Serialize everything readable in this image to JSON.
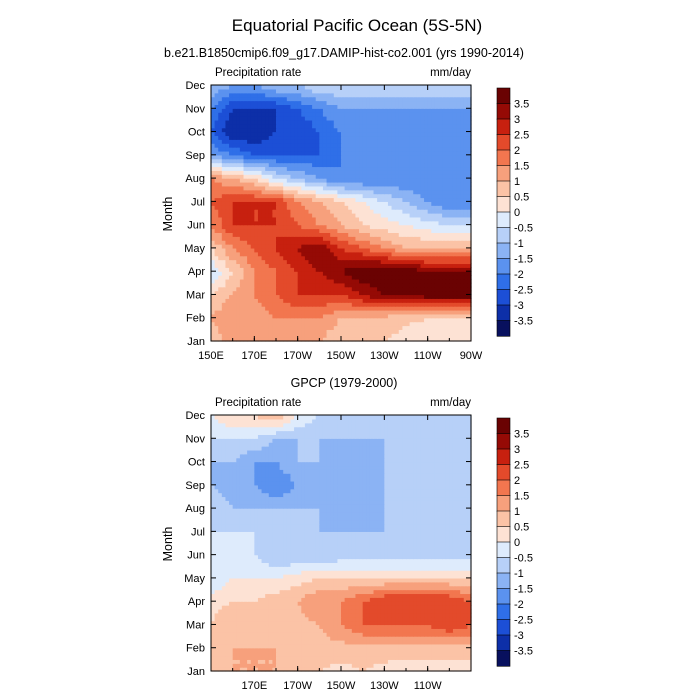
{
  "title": "Equatorial Pacific Ocean (5S-5N)",
  "colorbar_levels": [
    "3.5",
    "3",
    "2.5",
    "2",
    "1.5",
    "1",
    "0.5",
    "0",
    "-0.5",
    "-1",
    "-1.5",
    "-2",
    "-2.5",
    "-3",
    "-3.5"
  ],
  "colors": {
    "palette": [
      "#08105e",
      "#0d2fa8",
      "#1c4fd6",
      "#2f6fe8",
      "#5b92ef",
      "#8bb3f4",
      "#b7d0f8",
      "#deebfc",
      "#fde2d4",
      "#fbc3a6",
      "#f7a07c",
      "#f2764f",
      "#e34a2b",
      "#c7200f",
      "#950a05",
      "#6a0202"
    ]
  },
  "chart_data": [
    {
      "type": "heatmap",
      "subtitle": "b.e21.B1850cmip6.f09_g17.DAMIP-hist-co2.001 (yrs 1990-2014)",
      "left_label": "Precipitation rate",
      "right_label": "mm/day",
      "ylabel": "Month",
      "x_ticks": [
        "150E",
        "170E",
        "170W",
        "150W",
        "130W",
        "110W",
        "90W"
      ],
      "y_ticks": [
        "Jan",
        "Feb",
        "Mar",
        "Apr",
        "May",
        "Jun",
        "Jul",
        "Aug",
        "Sep",
        "Oct",
        "Nov",
        "Dec"
      ],
      "xlim": [
        150,
        270
      ],
      "levels": [
        -3.5,
        -3,
        -2.5,
        -2,
        -1.5,
        -1,
        -0.5,
        0,
        0.5,
        1,
        1.5,
        2,
        2.5,
        3,
        3.5
      ],
      "x": [
        150,
        160,
        170,
        180,
        190,
        200,
        210,
        220,
        230,
        240,
        250,
        260,
        270
      ],
      "z": [
        [
          0.5,
          1.5,
          1.0,
          1.0,
          1.5,
          1.0,
          0.5,
          0.5,
          0.5,
          0.3,
          0.2,
          0.2,
          0.0
        ],
        [
          1.0,
          1.5,
          1.0,
          1.5,
          1.5,
          1.5,
          1.0,
          1.0,
          0.8,
          0.6,
          0.5,
          0.5,
          0.3
        ],
        [
          0.5,
          1.0,
          1.5,
          2.0,
          2.5,
          2.5,
          2.5,
          3.0,
          3.5,
          3.5,
          3.8,
          3.8,
          3.8
        ],
        [
          -0.5,
          0.5,
          1.5,
          2.0,
          2.5,
          3.0,
          3.5,
          4.0,
          4.0,
          4.0,
          3.5,
          3.5,
          3.5
        ],
        [
          0.5,
          1.5,
          2.0,
          2.5,
          3.0,
          3.5,
          2.5,
          2.0,
          1.5,
          1.0,
          1.0,
          1.0,
          1.0
        ],
        [
          1.5,
          2.5,
          2.5,
          2.5,
          2.0,
          1.5,
          1.0,
          0.5,
          0.2,
          0.0,
          -0.3,
          -0.5,
          -0.5
        ],
        [
          2.0,
          2.5,
          2.5,
          2.5,
          1.5,
          1.0,
          0.5,
          0.0,
          -0.5,
          -1.0,
          -1.5,
          -2.0,
          -2.0
        ],
        [
          1.5,
          1.0,
          0.5,
          -0.5,
          -1.0,
          -1.5,
          -2.0,
          -2.0,
          -2.0,
          -2.0,
          -2.0,
          -2.0,
          -2.0
        ],
        [
          -1.5,
          -2.0,
          -2.5,
          -2.5,
          -2.5,
          -2.5,
          -2.0,
          -2.0,
          -2.0,
          -2.0,
          -2.0,
          -2.0,
          -2.0
        ],
        [
          -2.5,
          -3.5,
          -3.5,
          -3.0,
          -3.0,
          -2.5,
          -2.0,
          -2.0,
          -2.0,
          -2.0,
          -2.0,
          -2.0,
          -2.0
        ],
        [
          -2.0,
          -3.0,
          -3.0,
          -3.0,
          -2.5,
          -2.0,
          -1.5,
          -1.5,
          -1.5,
          -1.5,
          -1.5,
          -1.5,
          -1.5
        ],
        [
          -1.0,
          -1.5,
          -1.5,
          -1.0,
          -1.0,
          -0.5,
          -0.5,
          -0.5,
          -0.5,
          -0.5,
          -0.5,
          -0.5,
          -0.5
        ]
      ]
    },
    {
      "type": "heatmap",
      "subtitle": "GPCP (1979-2000)",
      "left_label": "Precipitation rate",
      "right_label": "mm/day",
      "ylabel": "Month",
      "x_ticks": [
        "170E",
        "170W",
        "150W",
        "130W",
        "110W"
      ],
      "y_ticks": [
        "Jan",
        "Feb",
        "Mar",
        "Apr",
        "May",
        "Jun",
        "Jul",
        "Aug",
        "Sep",
        "Oct",
        "Nov",
        "Dec"
      ],
      "xlim": [
        150,
        270
      ],
      "levels": [
        -3.5,
        -3,
        -2.5,
        -2,
        -1.5,
        -1,
        -0.5,
        0,
        0.5,
        1,
        1.5,
        2,
        2.5,
        3,
        3.5
      ],
      "x": [
        150,
        160,
        170,
        180,
        190,
        200,
        210,
        220,
        230,
        240,
        250,
        260,
        270
      ],
      "z": [
        [
          0.5,
          1.0,
          1.0,
          1.0,
          0.5,
          0.5,
          0.3,
          0.5,
          0.3,
          0.2,
          0.2,
          0.2,
          0.2
        ],
        [
          0.5,
          1.0,
          1.0,
          1.0,
          0.5,
          0.8,
          0.8,
          0.8,
          0.8,
          0.8,
          0.8,
          0.8,
          0.8
        ],
        [
          0.5,
          1.0,
          0.5,
          1.0,
          0.8,
          1.0,
          1.5,
          2.0,
          2.0,
          2.0,
          2.0,
          2.5,
          2.0
        ],
        [
          0.3,
          0.5,
          0.5,
          0.8,
          1.0,
          1.5,
          1.5,
          2.0,
          2.5,
          2.5,
          2.5,
          2.5,
          2.0
        ],
        [
          -0.5,
          0.0,
          0.0,
          0.0,
          0.3,
          0.5,
          0.5,
          0.5,
          0.5,
          0.5,
          0.5,
          0.5,
          0.5
        ],
        [
          -0.5,
          -0.5,
          -0.5,
          -1.0,
          -1.0,
          -1.0,
          -0.8,
          -0.8,
          -0.8,
          -0.8,
          -0.8,
          -0.8,
          -0.8
        ],
        [
          -0.5,
          -0.5,
          -0.5,
          -1.0,
          -1.0,
          -1.0,
          -1.0,
          -1.0,
          -1.0,
          -1.0,
          -1.0,
          -1.0,
          -1.0
        ],
        [
          -0.5,
          -1.0,
          -1.0,
          -1.0,
          -1.0,
          -1.0,
          -1.5,
          -1.5,
          -1.0,
          -1.0,
          -1.0,
          -1.0,
          -1.0
        ],
        [
          -1.0,
          -1.5,
          -1.5,
          -2.0,
          -1.5,
          -1.0,
          -1.0,
          -1.0,
          -1.0,
          -1.0,
          -1.0,
          -1.0,
          -1.0
        ],
        [
          -1.0,
          -1.0,
          -1.5,
          -1.5,
          -1.0,
          -1.0,
          -1.5,
          -1.5,
          -1.0,
          -1.0,
          -1.0,
          -1.0,
          -1.0
        ],
        [
          -0.5,
          -0.5,
          -0.5,
          -1.0,
          -1.0,
          -1.0,
          -1.0,
          -1.0,
          -1.0,
          -1.0,
          -1.0,
          -1.0,
          -1.0
        ],
        [
          0.0,
          0.5,
          0.5,
          1.0,
          0.0,
          -0.5,
          -0.5,
          -0.5,
          -0.5,
          -0.5,
          -0.5,
          -0.5,
          -0.5
        ]
      ]
    }
  ]
}
